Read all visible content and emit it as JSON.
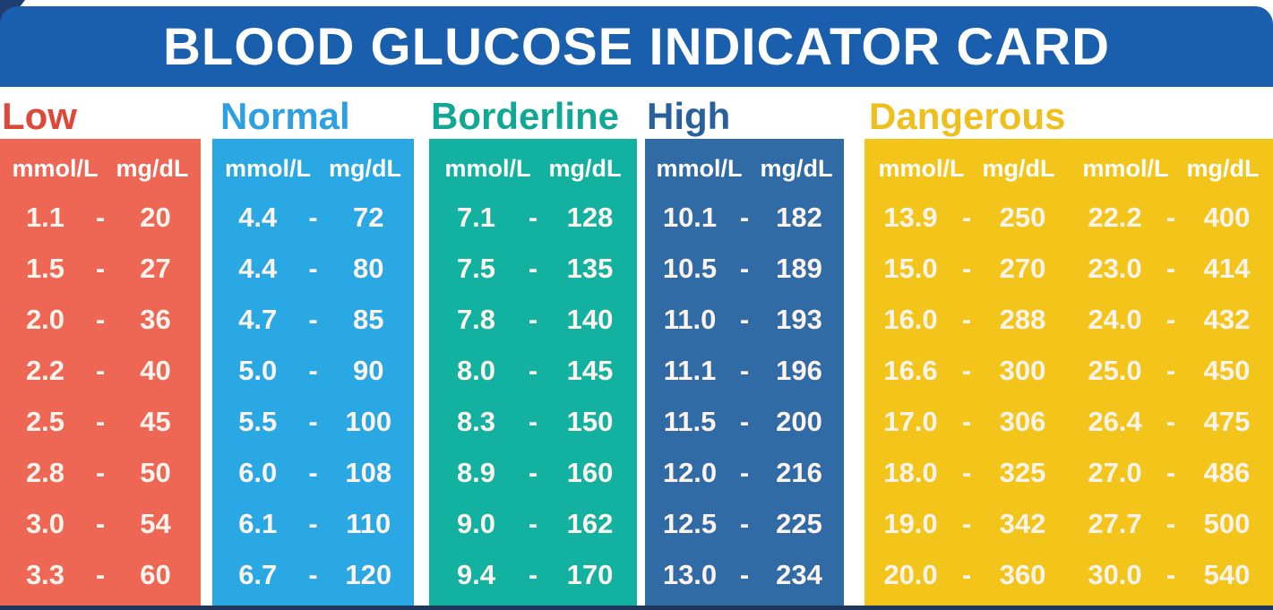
{
  "title": "BLOOD GLUCOSE INDICATOR CARD",
  "unit_headers": [
    "mmol/L",
    "mg/dL"
  ],
  "dash": "-",
  "theme": {
    "banner_blue": "#1A5FAD",
    "corner_navy": "#1E3E6F",
    "bottom_strip_navy": "#20375C",
    "value_text": "#FBF3EC"
  },
  "categories": [
    {
      "label": "Low",
      "label_color": "#DC4938",
      "block_color": "#EE6755",
      "pairs": [
        [
          [
            "1.1",
            "20"
          ],
          [
            "1.5",
            "27"
          ],
          [
            "2.0",
            "36"
          ],
          [
            "2.2",
            "40"
          ],
          [
            "2.5",
            "45"
          ],
          [
            "2.8",
            "50"
          ],
          [
            "3.0",
            "54"
          ],
          [
            "3.3",
            "60"
          ]
        ]
      ]
    },
    {
      "label": "Normal",
      "label_color": "#2E9FDF",
      "block_color": "#29A8E4",
      "pairs": [
        [
          [
            "4.4",
            "72"
          ],
          [
            "4.4",
            "80"
          ],
          [
            "4.7",
            "85"
          ],
          [
            "5.0",
            "90"
          ],
          [
            "5.5",
            "100"
          ],
          [
            "6.0",
            "108"
          ],
          [
            "6.1",
            "110"
          ],
          [
            "6.7",
            "120"
          ]
        ]
      ]
    },
    {
      "label": "Borderline",
      "label_color": "#12A794",
      "block_color": "#12B1A0",
      "pairs": [
        [
          [
            "7.1",
            "128"
          ],
          [
            "7.5",
            "135"
          ],
          [
            "7.8",
            "140"
          ],
          [
            "8.0",
            "145"
          ],
          [
            "8.3",
            "150"
          ],
          [
            "8.9",
            "160"
          ],
          [
            "9.0",
            "162"
          ],
          [
            "9.4",
            "170"
          ]
        ]
      ]
    },
    {
      "label": "High",
      "label_color": "#28609B",
      "block_color": "#306BA5",
      "pairs": [
        [
          [
            "10.1",
            "182"
          ],
          [
            "10.5",
            "189"
          ],
          [
            "11.0",
            "193"
          ],
          [
            "11.1",
            "196"
          ],
          [
            "11.5",
            "200"
          ],
          [
            "12.0",
            "216"
          ],
          [
            "12.5",
            "225"
          ],
          [
            "13.0",
            "234"
          ]
        ]
      ]
    },
    {
      "label": "Dangerous",
      "label_color": "#EFBF1E",
      "block_color": "#F3C51A",
      "pairs": [
        [
          [
            "13.9",
            "250"
          ],
          [
            "15.0",
            "270"
          ],
          [
            "16.0",
            "288"
          ],
          [
            "16.6",
            "300"
          ],
          [
            "17.0",
            "306"
          ],
          [
            "18.0",
            "325"
          ],
          [
            "19.0",
            "342"
          ],
          [
            "20.0",
            "360"
          ]
        ],
        [
          [
            "22.2",
            "400"
          ],
          [
            "23.0",
            "414"
          ],
          [
            "24.0",
            "432"
          ],
          [
            "25.0",
            "450"
          ],
          [
            "26.4",
            "475"
          ],
          [
            "27.0",
            "486"
          ],
          [
            "27.7",
            "500"
          ],
          [
            "30.0",
            "540"
          ]
        ]
      ]
    }
  ],
  "chart_data": {
    "type": "table",
    "title": "BLOOD GLUCOSE INDICATOR CARD",
    "columns": [
      "mmol/L",
      "mg/dL"
    ],
    "series": [
      {
        "name": "Low",
        "mmol_L": [
          1.1,
          1.5,
          2.0,
          2.2,
          2.5,
          2.8,
          3.0,
          3.3
        ],
        "mg_dL": [
          20,
          27,
          36,
          40,
          45,
          50,
          54,
          60
        ]
      },
      {
        "name": "Normal",
        "mmol_L": [
          4.4,
          4.4,
          4.7,
          5.0,
          5.5,
          6.0,
          6.1,
          6.7
        ],
        "mg_dL": [
          72,
          80,
          85,
          90,
          100,
          108,
          110,
          120
        ]
      },
      {
        "name": "Borderline",
        "mmol_L": [
          7.1,
          7.5,
          7.8,
          8.0,
          8.3,
          8.9,
          9.0,
          9.4
        ],
        "mg_dL": [
          128,
          135,
          140,
          145,
          150,
          160,
          162,
          170
        ]
      },
      {
        "name": "High",
        "mmol_L": [
          10.1,
          10.5,
          11.0,
          11.1,
          11.5,
          12.0,
          12.5,
          13.0
        ],
        "mg_dL": [
          182,
          189,
          193,
          196,
          200,
          216,
          225,
          234
        ]
      },
      {
        "name": "Dangerous",
        "mmol_L": [
          13.9,
          15.0,
          16.0,
          16.6,
          17.0,
          18.0,
          19.0,
          20.0,
          22.2,
          23.0,
          24.0,
          25.0,
          26.4,
          27.0,
          27.7,
          30.0
        ],
        "mg_dL": [
          250,
          270,
          288,
          300,
          306,
          325,
          342,
          360,
          400,
          414,
          432,
          450,
          475,
          486,
          500,
          540
        ]
      }
    ]
  }
}
